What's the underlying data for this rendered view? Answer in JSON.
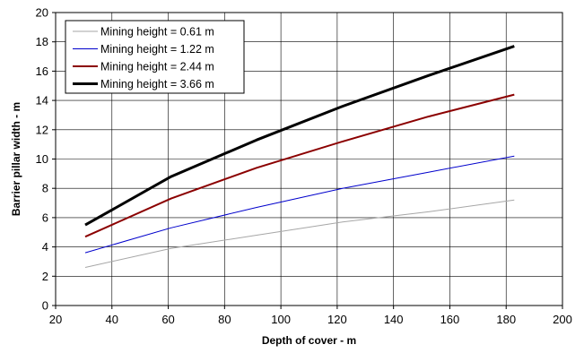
{
  "chart_data": {
    "type": "line",
    "xlabel": "Depth of cover - m",
    "ylabel": "Barrier pillar width - m",
    "xlim": [
      20,
      200
    ],
    "ylim": [
      0,
      20
    ],
    "xticks": [
      20,
      40,
      60,
      80,
      100,
      120,
      140,
      160,
      180,
      200
    ],
    "yticks": [
      0,
      2,
      4,
      6,
      8,
      10,
      12,
      14,
      16,
      18,
      20
    ],
    "grid": true,
    "legend_position": "top-left",
    "series": [
      {
        "name": "Mining height = 0.61 m",
        "color": "#a6a6a6",
        "x": [
          30.5,
          61,
          91.4,
          121.9,
          152.4,
          182.9
        ],
        "y": [
          2.6,
          3.9,
          4.8,
          5.7,
          6.4,
          7.2
        ]
      },
      {
        "name": "Mining height = 1.22 m",
        "color": "#0000cc",
        "x": [
          30.5,
          61,
          91.4,
          121.9,
          152.4,
          182.9
        ],
        "y": [
          3.6,
          5.3,
          6.7,
          8.0,
          9.1,
          10.2
        ]
      },
      {
        "name": "Mining height = 2.44 m",
        "color": "#8b0000",
        "x": [
          30.5,
          61,
          91.4,
          121.9,
          152.4,
          182.9
        ],
        "y": [
          4.7,
          7.3,
          9.4,
          11.2,
          12.9,
          14.4
        ]
      },
      {
        "name": "Mining height = 3.66 m",
        "color": "#000000",
        "x": [
          30.5,
          61,
          91.4,
          121.9,
          152.4,
          182.9
        ],
        "y": [
          5.5,
          8.8,
          11.3,
          13.6,
          15.7,
          17.7
        ]
      }
    ]
  }
}
